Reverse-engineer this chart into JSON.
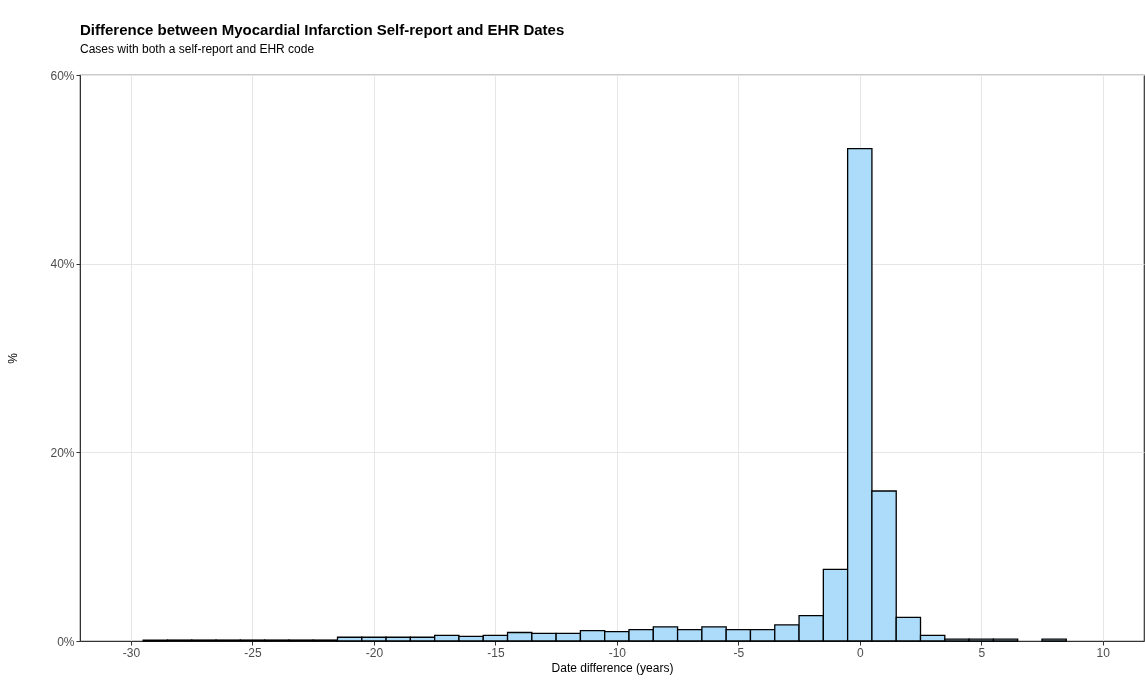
{
  "chart_data": {
    "type": "histogram",
    "title": "Difference between Myocardial Infarction Self-report and EHR Dates",
    "subtitle": "Cases with both a self-report and EHR code",
    "xlabel": "Date difference (years)",
    "ylabel": "%",
    "bins": [
      -29.5,
      -28.5,
      -27.5,
      -26.5,
      -25.5,
      -24.5,
      -23.5,
      -22.5,
      -21.5,
      -20.5,
      -19.5,
      -18.5,
      -17.5,
      -16.5,
      -15.5,
      -14.5,
      -13.5,
      -12.5,
      -11.5,
      -10.5,
      -9.5,
      -8.5,
      -7.5,
      -6.5,
      -5.5,
      -4.5,
      -3.5,
      -2.5,
      -1.5,
      -0.5,
      0.5,
      1.5,
      2.5,
      3.5,
      4.5,
      5.5,
      6.5,
      7.5,
      8.5
    ],
    "values": [
      0.1,
      0.1,
      0.1,
      0.1,
      0.1,
      0.1,
      0.1,
      0.1,
      0.4,
      0.4,
      0.4,
      0.4,
      0.6,
      0.5,
      0.6,
      0.9,
      0.8,
      0.8,
      1.1,
      1.0,
      1.2,
      1.5,
      1.2,
      1.5,
      1.2,
      1.2,
      1.7,
      2.7,
      7.6,
      52.2,
      15.9,
      2.5,
      0.6,
      0.2,
      0.2,
      0.2,
      0,
      0.2
    ],
    "color": "#acdcfa",
    "xlim": [
      -32.1,
      11.7
    ],
    "xticks": [
      -30,
      -25,
      -20,
      -15,
      -10,
      -5,
      0,
      5,
      10
    ],
    "ylim": [
      0,
      60
    ],
    "yticks": [
      {
        "value": 0,
        "label": "0%"
      },
      {
        "value": 20,
        "label": "20%"
      },
      {
        "value": 40,
        "label": "40%"
      },
      {
        "value": 60,
        "label": "60%"
      }
    ],
    "grid": true
  }
}
